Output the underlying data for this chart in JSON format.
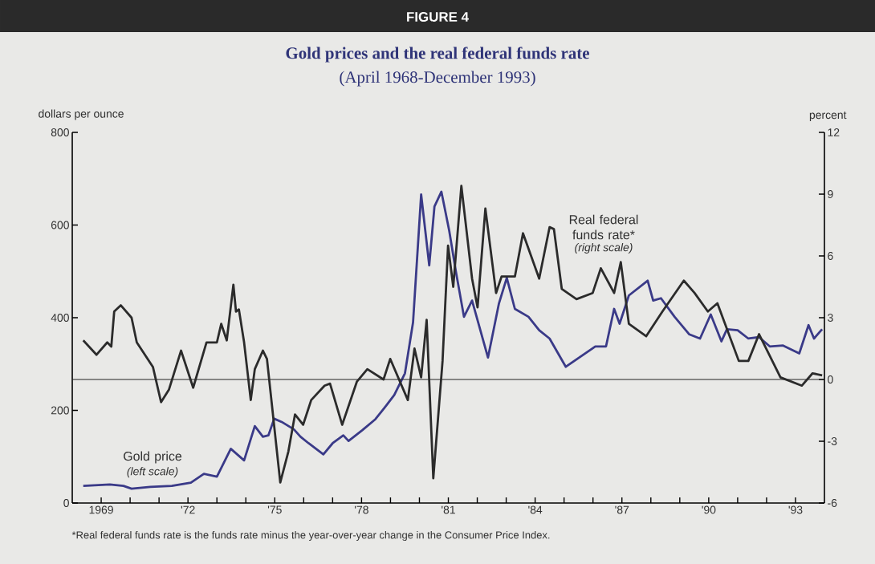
{
  "chart_data": {
    "type": "line",
    "title": "Gold prices and the real federal funds rate",
    "subtitle": "(April 1968-December 1993)",
    "ylabel": "dollars per ounce",
    "y2label": "percent",
    "annotations": [
      "FIGURE 4",
      "(left scale)",
      "(right scale)",
      "*Real federal funds rate is the funds rate minus the year-over-year change in the Consumer Price Index."
    ],
    "xlim": [
      1968,
      1994
    ],
    "xticks": [
      1969,
      {
        "value": 1970,
        "label": null
      },
      {
        "value": 1971,
        "label": null
      },
      {
        "value": 1972,
        "label": "'72"
      },
      {
        "value": 1973,
        "label": null
      },
      {
        "value": 1974,
        "label": null
      },
      {
        "value": 1975,
        "label": "'75"
      },
      {
        "value": 1976,
        "label": null
      },
      {
        "value": 1977,
        "label": null
      },
      {
        "value": 1978,
        "label": "'78"
      },
      {
        "value": 1979,
        "label": null
      },
      {
        "value": 1980,
        "label": null
      },
      {
        "value": 1981,
        "label": "'81"
      },
      {
        "value": 1982,
        "label": null
      },
      {
        "value": 1983,
        "label": null
      },
      {
        "value": 1984,
        "label": "'84"
      },
      {
        "value": 1985,
        "label": null
      },
      {
        "value": 1986,
        "label": null
      },
      {
        "value": 1987,
        "label": "'87"
      },
      {
        "value": 1988,
        "label": null
      },
      {
        "value": 1989,
        "label": null
      },
      {
        "value": 1990,
        "label": "'90"
      },
      {
        "value": 1991,
        "label": null
      },
      {
        "value": 1992,
        "label": null
      },
      {
        "value": 1993,
        "label": "'93"
      }
    ],
    "ylim": [
      0,
      800
    ],
    "yticks": [
      0,
      200,
      400,
      600,
      800
    ],
    "y2lim": [
      -6,
      12
    ],
    "y2ticks": [
      -6,
      -3,
      0,
      3,
      6,
      9,
      12
    ],
    "grid": false,
    "marker": "none",
    "line_style": "solid",
    "ref_lines": [
      {
        "axis": "y2",
        "value": 0,
        "color": "#222222"
      }
    ],
    "series": [
      {
        "name": "Gold price",
        "color": "#3a3a88",
        "x": [
          1968.38,
          1969.3,
          1969.77,
          1970.05,
          1970.7,
          1971.44,
          1972.1,
          1972.55,
          1973.0,
          1973.48,
          1973.94,
          1974.31,
          1974.59,
          1974.78,
          1974.98,
          1975.24,
          1975.66,
          1975.89,
          1976.17,
          1976.68,
          1977.0,
          1977.37,
          1977.55,
          1978.02,
          1978.48,
          1978.85,
          1979.13,
          1979.5,
          1979.78,
          1980.06,
          1980.34,
          1980.52,
          1980.76,
          1981.03,
          1981.26,
          1981.54,
          1981.82,
          1982.37,
          1982.75,
          1983.02,
          1983.3,
          1983.77,
          1984.14,
          1984.5,
          1985.06,
          1986.08,
          1986.45,
          1986.73,
          1986.92,
          1987.24,
          1987.89,
          1988.08,
          1988.35,
          1988.82,
          1989.33,
          1989.7,
          1990.07,
          1990.44,
          1990.63,
          1991.0,
          1991.37,
          1991.74,
          1992.11,
          1992.57,
          1993.13,
          1993.45,
          1993.64,
          1993.92
        ],
        "values": [
          37,
          40,
          37,
          31,
          35,
          37,
          44,
          63,
          57,
          117,
          92,
          166,
          143,
          146,
          182,
          175,
          159,
          143,
          129,
          105,
          129,
          146,
          134,
          157,
          181,
          210,
          233,
          280,
          390,
          666,
          513,
          640,
          672,
          588,
          500,
          402,
          437,
          314,
          431,
          486,
          419,
          402,
          373,
          355,
          294,
          338,
          338,
          419,
          387,
          448,
          480,
          437,
          442,
          402,
          364,
          355,
          407,
          349,
          375,
          373,
          355,
          358,
          338,
          340,
          323,
          384,
          355,
          375
        ]
      },
      {
        "name": "Real federal funds rate*",
        "color": "#2b2b2b",
        "axis": "y2",
        "x": [
          1968.38,
          1968.84,
          1969.21,
          1969.35,
          1969.45,
          1969.68,
          1970.05,
          1970.23,
          1970.79,
          1971.07,
          1971.34,
          1971.76,
          1972.18,
          1972.64,
          1973.0,
          1973.15,
          1973.34,
          1973.57,
          1973.66,
          1973.76,
          1973.94,
          1974.17,
          1974.31,
          1974.59,
          1974.73,
          1975.19,
          1975.47,
          1975.7,
          1975.98,
          1976.26,
          1976.72,
          1976.91,
          1977.33,
          1977.84,
          1978.2,
          1978.76,
          1978.99,
          1979.6,
          1979.83,
          1980.06,
          1980.25,
          1980.48,
          1980.8,
          1980.99,
          1981.17,
          1981.45,
          1981.82,
          1982.01,
          1982.28,
          1982.65,
          1982.84,
          1983.3,
          1983.58,
          1984.14,
          1984.5,
          1984.65,
          1984.92,
          1985.43,
          1985.99,
          1986.27,
          1986.73,
          1986.96,
          1987.24,
          1987.84,
          1988.4,
          1989.14,
          1989.51,
          1989.97,
          1990.3,
          1991.04,
          1991.37,
          1991.74,
          1992.48,
          1993.22,
          1993.59,
          1993.92
        ],
        "values": [
          1.9,
          1.2,
          1.8,
          1.6,
          3.3,
          3.6,
          3.0,
          1.8,
          0.6,
          -1.1,
          -0.5,
          1.4,
          -0.4,
          1.8,
          1.8,
          2.7,
          1.9,
          4.6,
          3.3,
          3.4,
          1.8,
          -1.0,
          0.5,
          1.4,
          1.0,
          -5.0,
          -3.5,
          -1.7,
          -2.2,
          -1.0,
          -0.3,
          -0.2,
          -2.2,
          -0.1,
          0.5,
          0.0,
          1.0,
          -1.0,
          1.5,
          0.1,
          2.9,
          -4.8,
          0.9,
          6.5,
          4.5,
          9.4,
          4.9,
          3.5,
          8.3,
          4.2,
          5.0,
          5.0,
          7.1,
          4.9,
          7.4,
          7.3,
          4.4,
          3.9,
          4.2,
          5.4,
          4.2,
          5.7,
          2.7,
          2.1,
          3.3,
          4.8,
          4.2,
          3.3,
          3.7,
          0.9,
          0.9,
          2.2,
          0.1,
          -0.3,
          0.3,
          0.2
        ]
      }
    ]
  }
}
